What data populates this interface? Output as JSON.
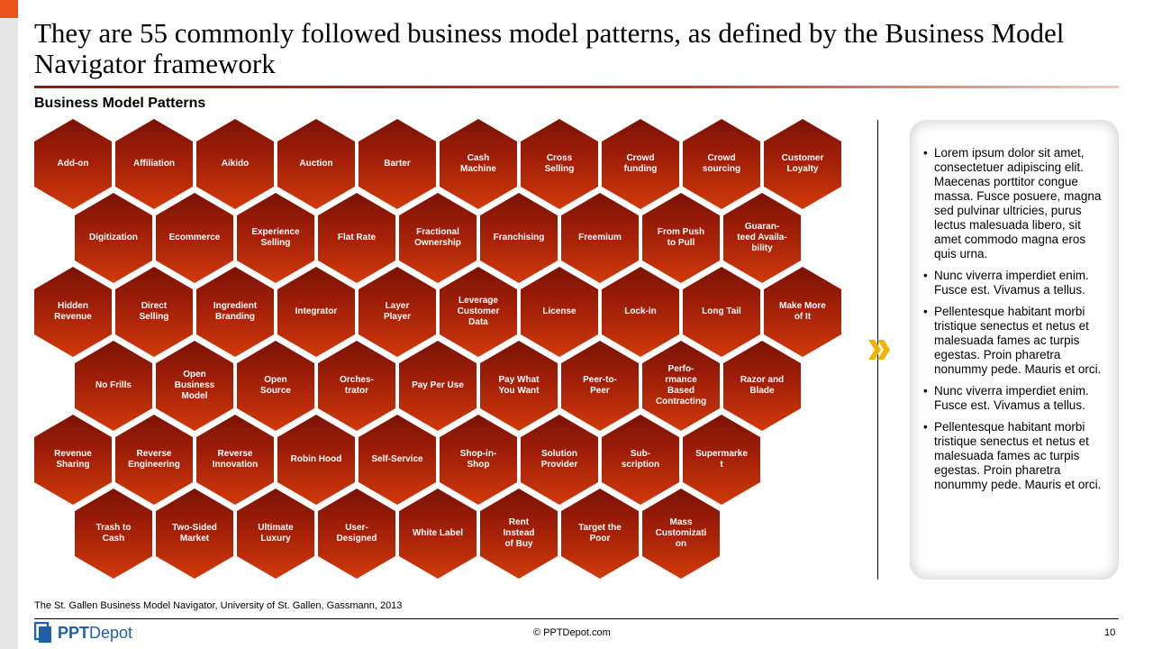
{
  "slide": {
    "title": "They are 55 commonly followed business model patterns, as defined by the Business Model Navigator framework",
    "subtitle": "Business Model Patterns",
    "source": "The St. Gallen Business Model Navigator, University of St. Gallen, Gassmann, 2013",
    "copyright": "© PPTDepot.com",
    "page_number": "10",
    "logo": {
      "bold": "PPT",
      "rest": "Depot"
    }
  },
  "colors": {
    "accent": "#e8541c",
    "hex_dark": "#7a1306",
    "hex_light": "#d13a0a",
    "chevron": "#f2b400",
    "logo": "#1f5fa8"
  },
  "hex_rows": [
    [
      "Add-on",
      "Affiliation",
      "Aikido",
      "Auction",
      "Barter",
      "Cash\nMachine",
      "Cross\nSelling",
      "Crowd\nfunding",
      "Crowd\nsourcing",
      "Customer\nLoyalty"
    ],
    [
      "Digitization",
      "Ecommerce",
      "Experience\nSelling",
      "Flat Rate",
      "Fractional\nOwnership",
      "Franchising",
      "Freemium",
      "From Push\nto Pull",
      "Guaran-\nteed Availa-\nbility"
    ],
    [
      "Hidden\nRevenue",
      "Direct\nSelling",
      "Ingredient\nBranding",
      "Integrator",
      "Layer\nPlayer",
      "Leverage\nCustomer\nData",
      "License",
      "Lock-in",
      "Long Tail",
      "Make More\nof It"
    ],
    [
      "No Frills",
      "Open\nBusiness\nModel",
      "Open\nSource",
      "Orches-\ntrator",
      "Pay Per Use",
      "Pay What\nYou Want",
      "Peer-to-\nPeer",
      "Perfo-\nrmance\nBased\nContracting",
      "Razor and\nBlade"
    ],
    [
      "Revenue\nSharing",
      "Reverse\nEngineering",
      "Reverse\nInnovation",
      "Robin Hood",
      "Self-Service",
      "Shop-in-\nShop",
      "Solution\nProvider",
      "Sub-\nscription",
      "Supermarke\nt"
    ],
    [
      "Trash to\nCash",
      "Two-Sided\nMarket",
      "Ultimate\nLuxury",
      "User-\nDesigned",
      "White Label",
      "Rent\nInstead\nof Buy",
      "Target the\nPoor",
      "Mass\nCustomizati\non"
    ]
  ],
  "bullets": [
    "Lorem ipsum dolor sit amet, consectetuer adipiscing elit. Maecenas porttitor congue massa. Fusce posuere, magna sed pulvinar ultricies, purus lectus malesuada libero, sit amet commodo magna eros quis urna.",
    "Nunc viverra imperdiet enim. Fusce est. Vivamus a tellus.",
    "Pellentesque habitant morbi tristique senectus et netus et malesuada fames ac turpis egestas. Proin pharetra nonummy pede. Mauris et orci.",
    "Nunc viverra imperdiet enim. Fusce est. Vivamus a tellus.",
    "Pellentesque habitant morbi tristique senectus et netus et malesuada fames ac turpis egestas. Proin pharetra nonummy pede. Mauris et orci."
  ]
}
